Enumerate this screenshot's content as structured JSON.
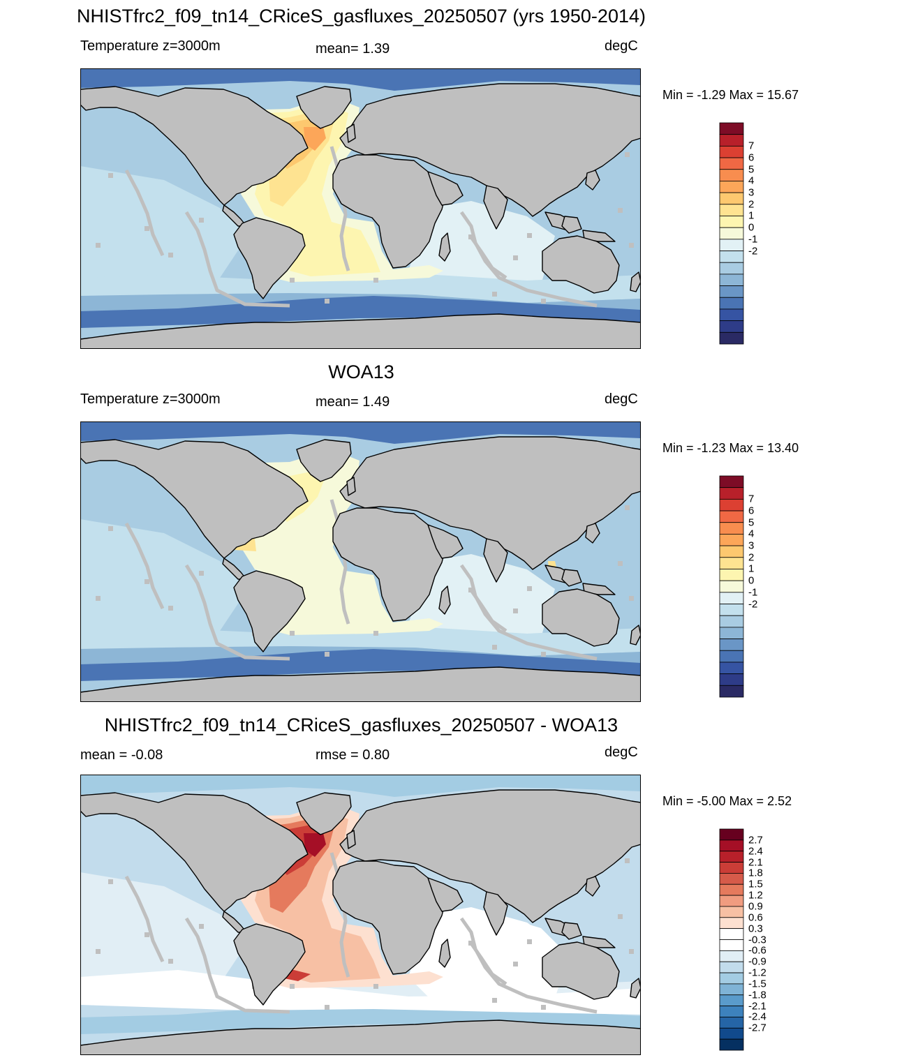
{
  "main_title": "NHISTfrc2_f09_tn14_CRiceS_gasfluxes_20250507 (yrs 1950-2014)",
  "land_color": "#bfbfbf",
  "panels": [
    {
      "id": "model",
      "title": "",
      "left_label": "Temperature z=3000m",
      "center_label": "mean=   1.39",
      "units": "degC",
      "minmax": "Min =  -1.29 Max =  15.67",
      "colorbar": {
        "colors": [
          "#2a2a64",
          "#2e3c88",
          "#3654a3",
          "#4a74b4",
          "#6a96c6",
          "#8db6d6",
          "#a9cce2",
          "#c3e0ed",
          "#e2f1f5",
          "#f6f9da",
          "#fdf5b0",
          "#fee391",
          "#fdc86f",
          "#fca659",
          "#f88d4f",
          "#f06844",
          "#dc4032",
          "#b8202a",
          "#7d0c26"
        ],
        "labels": [
          "7",
          "6",
          "5",
          "4",
          "3",
          "2",
          "1",
          "0",
          "-1",
          "-2"
        ]
      },
      "palette": {
        "cold": "#4a74b4",
        "cool": "#8db6d6",
        "base": "#a9cce2",
        "light": "#c3e0ed",
        "pale": "#e2f1f5",
        "cream": "#f6f9da",
        "yellow": "#fdf5b0",
        "gold": "#fee391",
        "orange": "#fdc86f",
        "dorange": "#fca659",
        "strong": "#f88d4f",
        "hot": "#dc4032",
        "dark": "#b8202a"
      },
      "scheme": "model"
    },
    {
      "id": "obs",
      "title": "WOA13",
      "left_label": "Temperature z=3000m",
      "center_label": "mean=   1.49",
      "units": "degC",
      "minmax": "Min =  -1.23 Max =  13.40",
      "colorbar": {
        "colors": [
          "#2a2a64",
          "#2e3c88",
          "#3654a3",
          "#4a74b4",
          "#6a96c6",
          "#8db6d6",
          "#a9cce2",
          "#c3e0ed",
          "#e2f1f5",
          "#f6f9da",
          "#fdf5b0",
          "#fee391",
          "#fdc86f",
          "#fca659",
          "#f88d4f",
          "#f06844",
          "#dc4032",
          "#b8202a",
          "#7d0c26"
        ],
        "labels": [
          "7",
          "6",
          "5",
          "4",
          "3",
          "2",
          "1",
          "0",
          "-1",
          "-2"
        ]
      },
      "palette": {
        "cold": "#4a74b4",
        "cool": "#8db6d6",
        "base": "#a9cce2",
        "light": "#c3e0ed",
        "pale": "#e2f1f5",
        "cream": "#f6f9da",
        "yellow": "#fdf5b0",
        "gold": "#fee391",
        "orange": "#fdc86f",
        "dorange": "#fca659",
        "strong": "#f88d4f",
        "hot": "#dc4032",
        "dark": "#7d0c26"
      },
      "scheme": "obs"
    },
    {
      "id": "diff",
      "title": "NHISTfrc2_f09_tn14_CRiceS_gasfluxes_20250507 - WOA13",
      "left_label": "mean =  -0.08",
      "center_label": "rmse =   0.80",
      "units": "degC",
      "minmax": "Min =  -5.00 Max =   2.52",
      "colorbar": {
        "colors": [
          "#67001f",
          "#a50f26",
          "#b8202a",
          "#cb3d37",
          "#d65b4a",
          "#e57a5d",
          "#f09c80",
          "#f7c0a4",
          "#fde0d0",
          "#ffffff",
          "#ffffff",
          "#e1eef5",
          "#c2dcec",
          "#a3cce3",
          "#7fb3d6",
          "#5a9bcb",
          "#3d82bd",
          "#2565a6",
          "#114a8c",
          "#053061"
        ],
        "labels": [
          "2.7",
          "2.4",
          "2.1",
          "1.8",
          "1.5",
          "1.2",
          "0.9",
          "0.6",
          "0.3",
          "-0.3",
          "-0.6",
          "-0.9",
          "-1.2",
          "-1.5",
          "-1.8",
          "-2.1",
          "-2.4",
          "-2.7"
        ]
      },
      "palette": {
        "cold": "#a3cce3",
        "cool": "#c2dcec",
        "base": "#c2dcec",
        "light": "#e1eef5",
        "pale": "#ffffff",
        "cream": "#fde0d0",
        "yellow": "#f7c0a4",
        "gold": "#f09c80",
        "orange": "#e57a5d",
        "dorange": "#d65b4a",
        "strong": "#cb3d37",
        "hot": "#b8202a",
        "dark": "#a50f26"
      },
      "scheme": "diff"
    }
  ]
}
